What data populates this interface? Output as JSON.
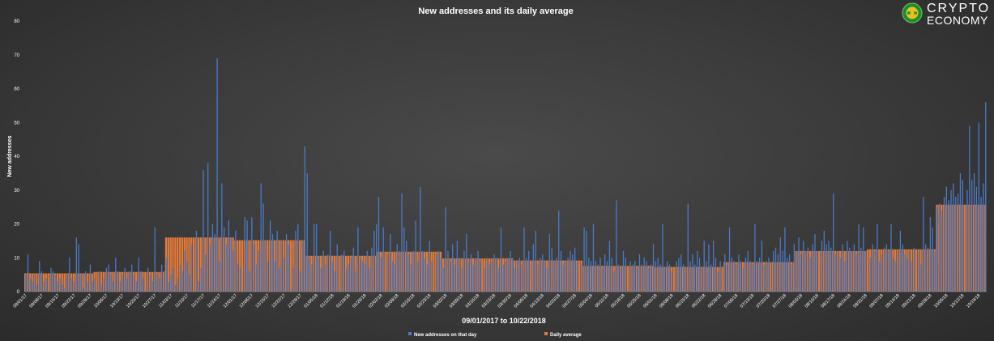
{
  "chart_data": {
    "type": "bar",
    "title": "New addresses and its daily average",
    "xlabel": "09/01/2017 to 10/22/2018",
    "ylabel": "New addresses",
    "ylim": [
      0,
      80
    ],
    "yticks": [
      0,
      10,
      20,
      30,
      40,
      50,
      60,
      70,
      80
    ],
    "grid": false,
    "legend_position": "bottom",
    "x_start": "09/01/2017",
    "x_end": "10/22/2018",
    "x_tick_labels": [
      "09/01/17",
      "09/08/17",
      "09/15/17",
      "09/22/17",
      "09/29/17",
      "10/06/17",
      "10/13/17",
      "10/20/17",
      "10/27/17",
      "11/03/17",
      "11/10/17",
      "11/17/17",
      "11/24/17",
      "12/01/17",
      "12/08/17",
      "12/15/17",
      "12/22/17",
      "12/29/17",
      "01/05/18",
      "01/12/18",
      "01/19/18",
      "01/26/18",
      "02/02/18",
      "02/09/18",
      "02/16/18",
      "02/23/18",
      "03/02/18",
      "03/09/18",
      "03/16/18",
      "03/23/18",
      "03/30/18",
      "04/06/18",
      "04/13/18",
      "04/20/18",
      "04/27/18",
      "05/04/18",
      "05/11/18",
      "05/18/18",
      "05/25/18",
      "06/01/18",
      "06/08/18",
      "06/15/18",
      "06/22/18",
      "06/29/18",
      "07/06/18",
      "07/13/18",
      "07/20/18",
      "07/27/18",
      "08/03/18",
      "08/10/18",
      "08/17/18",
      "08/24/18",
      "08/31/18",
      "09/07/18",
      "09/14/18",
      "09/21/18",
      "09/28/18",
      "10/05/18",
      "10/12/18",
      "10/19/18"
    ],
    "series": [
      {
        "name": "New addresses on that day",
        "color": "#4a7bc8",
        "values": [
          5,
          11,
          4,
          3,
          5,
          2,
          9,
          6,
          3,
          4,
          7,
          6,
          5,
          3,
          4,
          2,
          1,
          5,
          10,
          4,
          3,
          16,
          14,
          5,
          1,
          6,
          3,
          8,
          3,
          4,
          6,
          2,
          4,
          7,
          8,
          5,
          3,
          10,
          6,
          3,
          5,
          7,
          4,
          6,
          8,
          5,
          3,
          10,
          6,
          4,
          7,
          5,
          3,
          19,
          5,
          4,
          8,
          6,
          10,
          3,
          5,
          7,
          2,
          4,
          8,
          6,
          12,
          9,
          5,
          14,
          18,
          3,
          7,
          36,
          11,
          38,
          14,
          20,
          17,
          69,
          9,
          32,
          19,
          14,
          21,
          16,
          12,
          18,
          8,
          7,
          22,
          21,
          6,
          22,
          14,
          8,
          12,
          32,
          26,
          15,
          9,
          21,
          17,
          9,
          18,
          7,
          15,
          10,
          17,
          14,
          7,
          18,
          20,
          6,
          15,
          43,
          35,
          10,
          8,
          20,
          20,
          10,
          7,
          12,
          8,
          11,
          18,
          9,
          6,
          14,
          11,
          12,
          7,
          8,
          10,
          13,
          6,
          19,
          10,
          9,
          8,
          12,
          7,
          13,
          18,
          20,
          28,
          10,
          19,
          11,
          17,
          9,
          8,
          14,
          12,
          29,
          19,
          15,
          11,
          8,
          12,
          21,
          9,
          31,
          12,
          10,
          8,
          15,
          9,
          11,
          12,
          10,
          7,
          25,
          12,
          9,
          14,
          8,
          15,
          10,
          7,
          12,
          17,
          9,
          11,
          8,
          10,
          12,
          9,
          7,
          10,
          8,
          9,
          11,
          10,
          7,
          19,
          8,
          9,
          10,
          12,
          10,
          7,
          9,
          10,
          8,
          19,
          10,
          12,
          14,
          18,
          8,
          10,
          11,
          9,
          7,
          17,
          13,
          9,
          10,
          24,
          12,
          8,
          9,
          10,
          12,
          11,
          13,
          9,
          8,
          19,
          18,
          10,
          9,
          20,
          9,
          8,
          10,
          7,
          11,
          9,
          15,
          10,
          6,
          27,
          8,
          7,
          12,
          10,
          9,
          8,
          9,
          7,
          11,
          8,
          10,
          9,
          7,
          8,
          14,
          9,
          10,
          8,
          20,
          7,
          9,
          8,
          6,
          9,
          10,
          11,
          8,
          7,
          26,
          9,
          11,
          8,
          12,
          10,
          7,
          15,
          9,
          14,
          8,
          15,
          10,
          6,
          9,
          11,
          8,
          19,
          10,
          9,
          8,
          11,
          9,
          7,
          10,
          12,
          9,
          8,
          20,
          9,
          10,
          15,
          8,
          9,
          10,
          12,
          13,
          11,
          16,
          12,
          19,
          10,
          11,
          8,
          14,
          12,
          16,
          11,
          15,
          12,
          13,
          10,
          14,
          17,
          12,
          15,
          18,
          14,
          15,
          13,
          29,
          11,
          12,
          10,
          14,
          9,
          15,
          13,
          12,
          14,
          11,
          20,
          13,
          19,
          12,
          10,
          14,
          12,
          20,
          9,
          11,
          13,
          14,
          12,
          20,
          10,
          9,
          12,
          18,
          14,
          11,
          10,
          12,
          9,
          13,
          12,
          8,
          28,
          14,
          13,
          22,
          19,
          12,
          25,
          26,
          24,
          28,
          31,
          27,
          30,
          32,
          28,
          29,
          35,
          33,
          30,
          49,
          33,
          35,
          31,
          50,
          28,
          32,
          56
        ]
      },
      {
        "name": "Daily average",
        "color": "#e07b3c",
        "segments": [
          {
            "from": "09/01/2017",
            "to": "09/30/2017",
            "value": 5.4
          },
          {
            "from": "10/01/2017",
            "to": "10/31/2017",
            "value": 5.8
          },
          {
            "from": "11/01/2017",
            "to": "11/30/2017",
            "value": 16.0
          },
          {
            "from": "12/01/2017",
            "to": "12/31/2017",
            "value": 15.2
          },
          {
            "from": "01/01/2018",
            "to": "01/31/2018",
            "value": 10.6
          },
          {
            "from": "02/01/2018",
            "to": "02/28/2018",
            "value": 11.8
          },
          {
            "from": "03/01/2018",
            "to": "03/31/2018",
            "value": 9.8
          },
          {
            "from": "04/01/2018",
            "to": "04/30/2018",
            "value": 9.2
          },
          {
            "from": "05/01/2018",
            "to": "05/31/2018",
            "value": 7.6
          },
          {
            "from": "06/01/2018",
            "to": "06/30/2018",
            "value": 7.3
          },
          {
            "from": "07/01/2018",
            "to": "07/31/2018",
            "value": 8.7
          },
          {
            "from": "08/01/2018",
            "to": "08/31/2018",
            "value": 12.0
          },
          {
            "from": "09/01/2018",
            "to": "09/30/2018",
            "value": 12.5
          },
          {
            "from": "10/01/2018",
            "to": "10/22/2018",
            "value": 25.7
          }
        ]
      }
    ]
  },
  "logo": {
    "line1": "CRYPTO",
    "line2": "ECONOMY"
  }
}
